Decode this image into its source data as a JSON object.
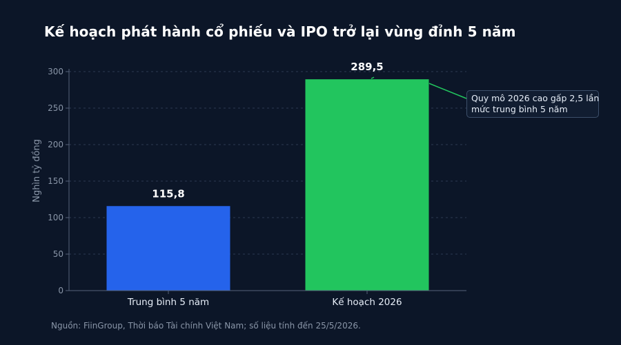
{
  "title": "Kế hoạch phát hành cổ phiếu và IPO trở lại vùng đỉnh 5 năm",
  "source_note": "Nguồn: FiinGroup, Thời báo Tài chính Việt Nam; số liệu tính đến 25/5/2026.",
  "annotation": {
    "line1": "Quy mô 2026 cao gấp 2,5 lần",
    "line2": "mức trung bình 5 năm"
  },
  "chart_data": {
    "type": "bar",
    "title": "Kế hoạch phát hành cổ phiếu và IPO trở lại vùng đỉnh 5 năm",
    "xlabel": "",
    "ylabel": "Nghìn tỷ đồng",
    "ylim": [
      0,
      300
    ],
    "yticks": [
      0,
      50,
      100,
      150,
      200,
      250,
      300
    ],
    "grid": true,
    "categories": [
      "Trung bình 5 năm",
      "Kế hoạch 2026"
    ],
    "values": [
      115.8,
      289.5
    ],
    "data_labels": [
      "115,8",
      "289,5"
    ],
    "colors": [
      "#2563eb",
      "#22c55e"
    ],
    "annotation_color": "#22c55e"
  }
}
